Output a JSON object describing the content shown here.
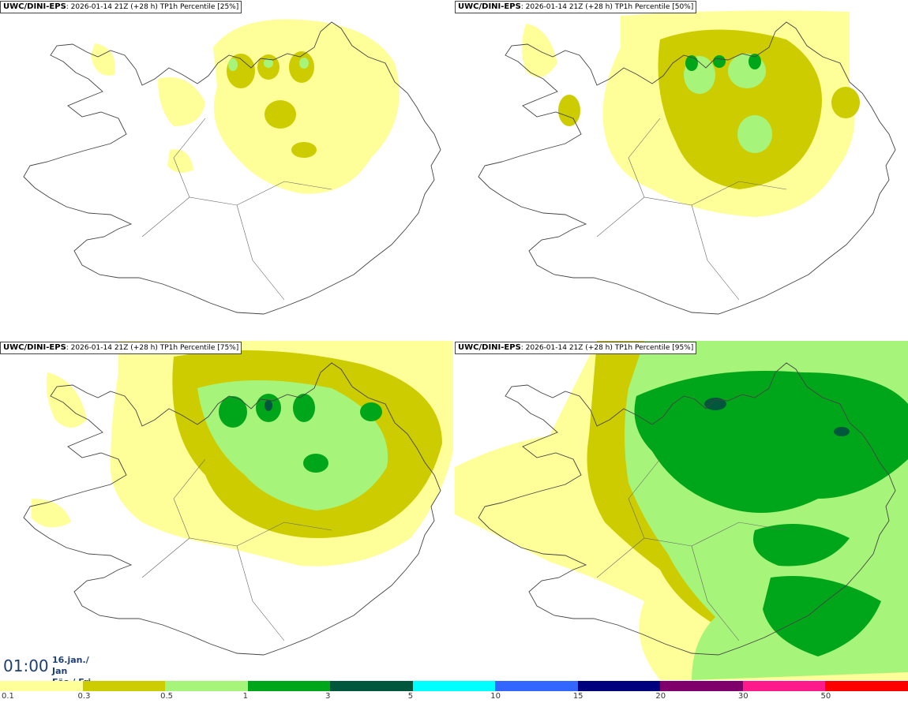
{
  "panels": [
    {
      "model": "UWC/DINI-EPS",
      "info": ": 2026-01-14 21Z (+28 h) TP1h Percentile [25%]"
    },
    {
      "model": "UWC/DINI-EPS",
      "info": ": 2026-01-14 21Z (+28 h) TP1h Percentile [50%]"
    },
    {
      "model": "UWC/DINI-EPS",
      "info": ": 2026-01-14 21Z (+28 h) TP1h Percentile [75%]"
    },
    {
      "model": "UWC/DINI-EPS",
      "info": ": 2026-01-14 21Z (+28 h) TP1h Percentile [95%]"
    }
  ],
  "valid_time": "01:00",
  "valid_date_line1": "16.jan./ Jan",
  "valid_date_line2": "Fös./ Fri",
  "legend": {
    "ticks": [
      "0.1",
      "0.3",
      "0.5",
      "1",
      "3",
      "5",
      "10",
      "15",
      "20",
      "30",
      "50"
    ],
    "colors": [
      "#ffff99",
      "#cccc00",
      "#a6f57a",
      "#00a619",
      "#00573b",
      "#00ffff",
      "#3366ff",
      "#00007f",
      "#7f006b",
      "#ff1a8c",
      "#ff0000"
    ]
  }
}
